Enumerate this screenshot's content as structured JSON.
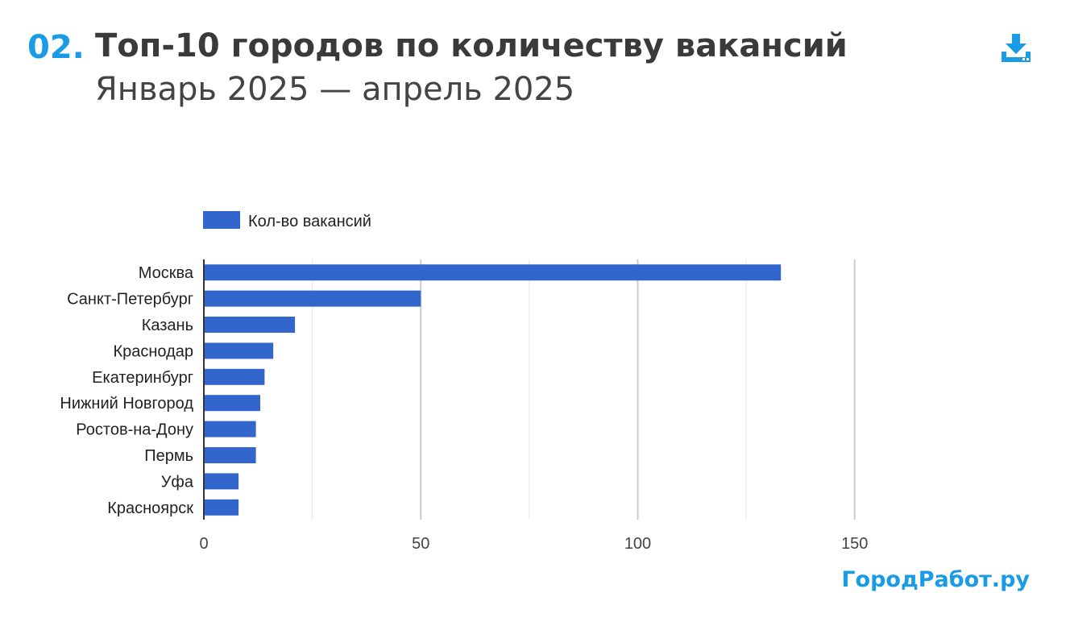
{
  "header": {
    "number": "02.",
    "title": "Топ-10 городов по количеству вакансий",
    "subtitle": "Январь 2025 — апрель 2025"
  },
  "toolbar": {
    "download_icon": "download-icon"
  },
  "brand": "ГородРабот.ру",
  "colors": {
    "accent": "#1a9be6",
    "bar": "#3366cc",
    "grid": "#cccccc",
    "axis": "#333333"
  },
  "chart_data": {
    "type": "bar",
    "orientation": "horizontal",
    "categories": [
      "Москва",
      "Санкт-Петербург",
      "Казань",
      "Краснодар",
      "Екатеринбург",
      "Нижний Новгород",
      "Ростов-на-Дону",
      "Пермь",
      "Уфа",
      "Красноярск"
    ],
    "series": [
      {
        "name": "Кол-во вакансий",
        "values": [
          133,
          50,
          21,
          16,
          14,
          13,
          12,
          12,
          8,
          8
        ]
      }
    ],
    "xlim": [
      0,
      175
    ],
    "xticks": [
      0,
      50,
      100,
      150
    ],
    "xtick_labels": [
      "0",
      "50",
      "100",
      "150"
    ],
    "minor_gridlines": [
      25,
      75,
      125
    ],
    "legend": "top-left",
    "grid": true
  }
}
